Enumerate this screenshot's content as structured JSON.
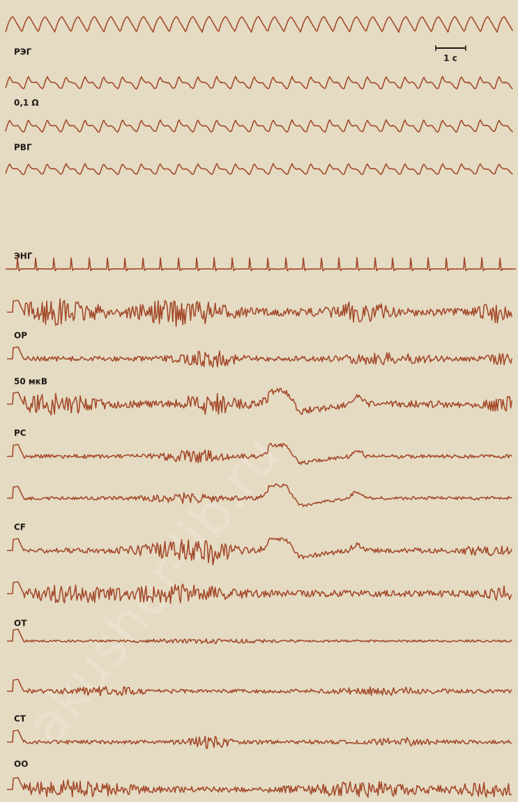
{
  "channel_labels": [
    "РЭГ",
    "0,1 Ω",
    "РВГ",
    "ЭНГ",
    "ОР",
    "50 мкВ",
    "PC",
    "CF",
    "OT",
    "CT",
    "OO"
  ],
  "scale_bar": "1 с",
  "watermark": "akusher-lib.ru"
}
